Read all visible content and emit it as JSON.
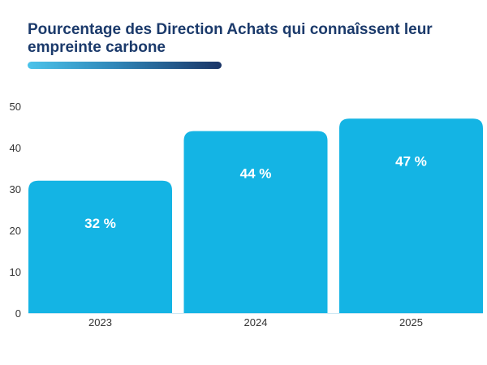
{
  "chart_data": {
    "type": "bar",
    "title": "Pourcentage des Direction Achats qui connaîssent leur empreinte carbone",
    "categories": [
      "2023",
      "2024",
      "2025"
    ],
    "values": [
      32,
      44,
      47
    ],
    "data_labels": [
      "32 %",
      "44 %",
      "47 %"
    ],
    "yticks": [
      0,
      10,
      20,
      30,
      40,
      50
    ],
    "ylim": [
      0,
      50
    ],
    "xlabel": "",
    "ylabel": "",
    "grid": false,
    "colors": {
      "bar": "#14b4e4",
      "title": "#1b3a6b",
      "label": "#ffffff"
    }
  }
}
